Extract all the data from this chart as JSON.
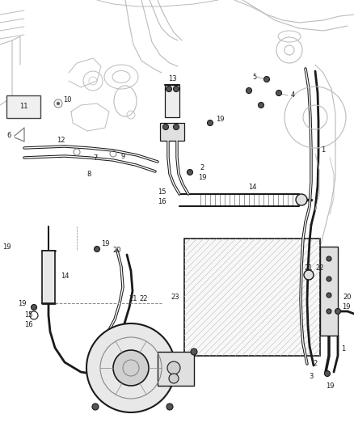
{
  "bg_color": "#ffffff",
  "line_color": "#1a1a1a",
  "gray_color": "#888888",
  "light_gray": "#bbbbbb",
  "figsize": [
    4.38,
    5.33
  ],
  "dpi": 100,
  "fs": 6.5
}
